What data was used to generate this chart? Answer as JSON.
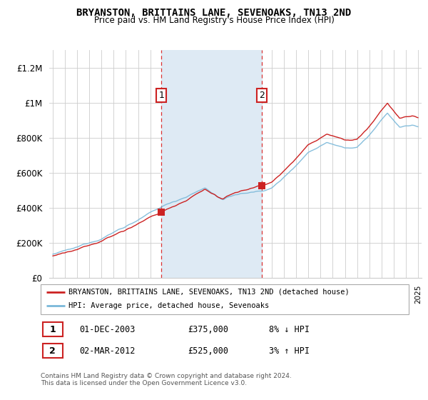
{
  "title": "BRYANSTON, BRITTAINS LANE, SEVENOAKS, TN13 2ND",
  "subtitle": "Price paid vs. HM Land Registry's House Price Index (HPI)",
  "legend_line1": "BRYANSTON, BRITTAINS LANE, SEVENOAKS, TN13 2ND (detached house)",
  "legend_line2": "HPI: Average price, detached house, Sevenoaks",
  "sale1_date": "01-DEC-2003",
  "sale1_price": "£375,000",
  "sale1_hpi": "8% ↓ HPI",
  "sale2_date": "02-MAR-2012",
  "sale2_price": "£525,000",
  "sale2_hpi": "3% ↑ HPI",
  "footer": "Contains HM Land Registry data © Crown copyright and database right 2024.\nThis data is licensed under the Open Government Licence v3.0.",
  "hpi_color": "#7ab8d9",
  "price_color": "#cc2222",
  "highlight_color": "#deeaf4",
  "vline_color": "#dd3333",
  "background_color": "#ffffff",
  "grid_color": "#cccccc",
  "ylim": [
    0,
    1300000
  ],
  "xlim": [
    1994.7,
    2025.3
  ],
  "sale1_year": 2003.92,
  "sale2_year": 2012.17,
  "sale1_price_val": 375000,
  "sale2_price_val": 525000
}
